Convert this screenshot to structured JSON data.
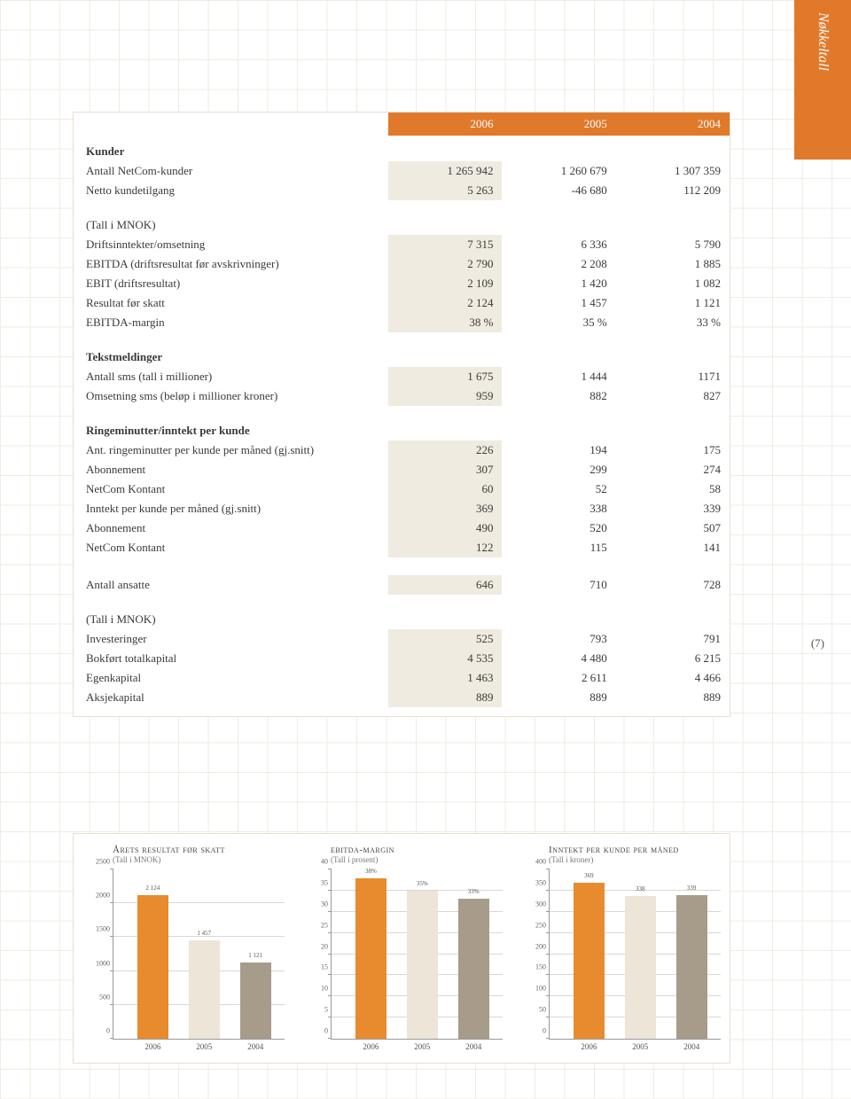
{
  "sideTab": "Nøkkeltall",
  "pageNum": "(7)",
  "tableHeaders": [
    "",
    "2006",
    "2005",
    "2004"
  ],
  "sections": [
    {
      "title": "Kunder",
      "rows": [
        {
          "label": "Antall NetCom-kunder",
          "v": [
            "1 265 942",
            "1 260 679",
            "1 307 359"
          ]
        },
        {
          "label": "Netto kundetilgang",
          "v": [
            "5 263",
            "-46 680",
            "112 209"
          ]
        }
      ]
    },
    {
      "title": "(Tall i MNOK)",
      "plain": true,
      "rows": [
        {
          "label": "Driftsinntekter/omsetning",
          "v": [
            "7 315",
            "6 336",
            "5 790"
          ]
        },
        {
          "label": "EBITDA (driftsresultat før avskrivninger)",
          "v": [
            "2 790",
            "2 208",
            "1 885"
          ]
        },
        {
          "label": "EBIT (driftsresultat)",
          "v": [
            "2 109",
            "1 420",
            "1 082"
          ]
        },
        {
          "label": "Resultat før skatt",
          "v": [
            "2 124",
            "1 457",
            "1 121"
          ]
        },
        {
          "label": "EBITDA-margin",
          "v": [
            "38 %",
            "35 %",
            "33 %"
          ]
        }
      ]
    },
    {
      "title": "Tekstmeldinger",
      "rows": [
        {
          "label": "Antall sms (tall i millioner)",
          "v": [
            "1 675",
            "1 444",
            "1171"
          ]
        },
        {
          "label": "Omsetning sms (beløp i millioner kroner)",
          "v": [
            "959",
            "882",
            "827"
          ]
        }
      ]
    },
    {
      "title": "Ringeminutter/inntekt per kunde",
      "rows": [
        {
          "label": "Ant. ringeminutter per kunde per måned (gj.snitt)",
          "v": [
            "226",
            "194",
            "175"
          ]
        },
        {
          "label": "Abonnement",
          "v": [
            "307",
            "299",
            "274"
          ]
        },
        {
          "label": "NetCom Kontant",
          "v": [
            "60",
            "52",
            "58"
          ]
        },
        {
          "label": "Inntekt per kunde per måned (gj.snitt)",
          "v": [
            "369",
            "338",
            "339"
          ]
        },
        {
          "label": "Abonnement",
          "v": [
            "490",
            "520",
            "507"
          ]
        },
        {
          "label": "NetCom Kontant",
          "v": [
            "122",
            "115",
            "141"
          ]
        }
      ]
    },
    {
      "title": "",
      "rows": [
        {
          "label": "Antall ansatte",
          "v": [
            "646",
            "710",
            "728"
          ]
        }
      ]
    },
    {
      "title": "(Tall i MNOK)",
      "plain": true,
      "rows": [
        {
          "label": "Investeringer",
          "v": [
            "525",
            "793",
            "791"
          ]
        },
        {
          "label": "Bokført totalkapital",
          "v": [
            "4 535",
            "4 480",
            "6 215"
          ]
        },
        {
          "label": "Egenkapital",
          "v": [
            "1 463",
            "2 611",
            "4 466"
          ]
        },
        {
          "label": "Aksjekapital",
          "v": [
            "889",
            "889",
            "889"
          ]
        }
      ]
    }
  ],
  "charts": [
    {
      "title": "Årets resultat før skatt",
      "subtitle": "(Tall i MNOK)",
      "ymax": 2500,
      "ystep": 500,
      "categories": [
        "2006",
        "2005",
        "2004"
      ],
      "values": [
        2124,
        1457,
        1121
      ],
      "labels": [
        "2 124",
        "1 457",
        "1 121"
      ],
      "colors": [
        "#e88a2e",
        "#ece5d8",
        "#a79b8a"
      ]
    },
    {
      "title": "ebitda-margin",
      "subtitle": "(Tall i prosent)",
      "ymax": 40,
      "ystep": 5,
      "categories": [
        "2006",
        "2005",
        "2004"
      ],
      "values": [
        38,
        35,
        33
      ],
      "labels": [
        "38%",
        "35%",
        "33%"
      ],
      "colors": [
        "#e88a2e",
        "#ece5d8",
        "#a79b8a"
      ]
    },
    {
      "title": "Inntekt per kunde per måned",
      "subtitle": "(Tall i kroner)",
      "ymax": 400,
      "ystep": 50,
      "categories": [
        "2006",
        "2005",
        "2004"
      ],
      "values": [
        369,
        338,
        339
      ],
      "labels": [
        "369",
        "338",
        "339"
      ],
      "colors": [
        "#e88a2e",
        "#ece5d8",
        "#a79b8a"
      ]
    }
  ]
}
